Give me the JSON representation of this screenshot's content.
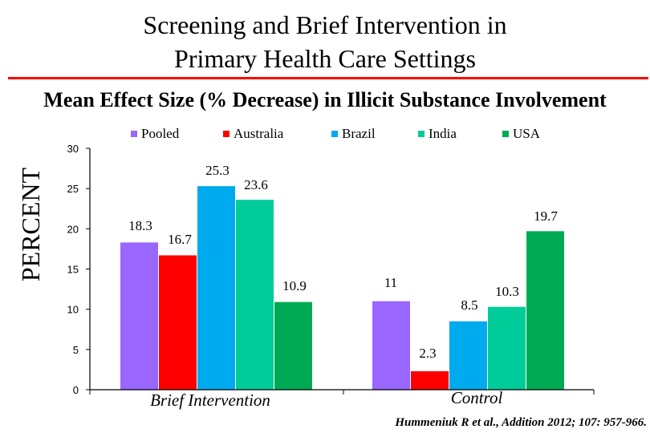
{
  "title_line1": "Screening and Brief Intervention in",
  "title_line2": "Primary Health Care Settings",
  "citation": "Hummeniuk R et al., Addition 2012; 107: 957-966.",
  "chart_data": {
    "type": "bar",
    "title": "Mean Effect Size (% Decrease) in Illicit Substance Involvement",
    "ylabel": "PERCENT",
    "xlabel": "",
    "ylim": [
      0,
      30
    ],
    "yticks": [
      0,
      5,
      10,
      15,
      20,
      25,
      30
    ],
    "grid": false,
    "legend_position": "top",
    "categories": [
      "Brief Intervention",
      "Control"
    ],
    "series": [
      {
        "name": "Pooled",
        "color": "#9966ff",
        "values": [
          18.3,
          11
        ],
        "labels": [
          "18.3",
          "11"
        ]
      },
      {
        "name": "Australia",
        "color": "#ff0000",
        "values": [
          16.7,
          2.3
        ],
        "labels": [
          "16.7",
          "2.3"
        ]
      },
      {
        "name": "Brazil",
        "color": "#00aaee",
        "values": [
          25.3,
          8.5
        ],
        "labels": [
          "25.3",
          "8.5"
        ]
      },
      {
        "name": "India",
        "color": "#00cc99",
        "values": [
          23.6,
          10.3
        ],
        "labels": [
          "23.6",
          "10.3"
        ]
      },
      {
        "name": "USA",
        "color": "#00aa55",
        "values": [
          10.9,
          19.7
        ],
        "labels": [
          "10.9",
          "19.7"
        ]
      }
    ]
  }
}
